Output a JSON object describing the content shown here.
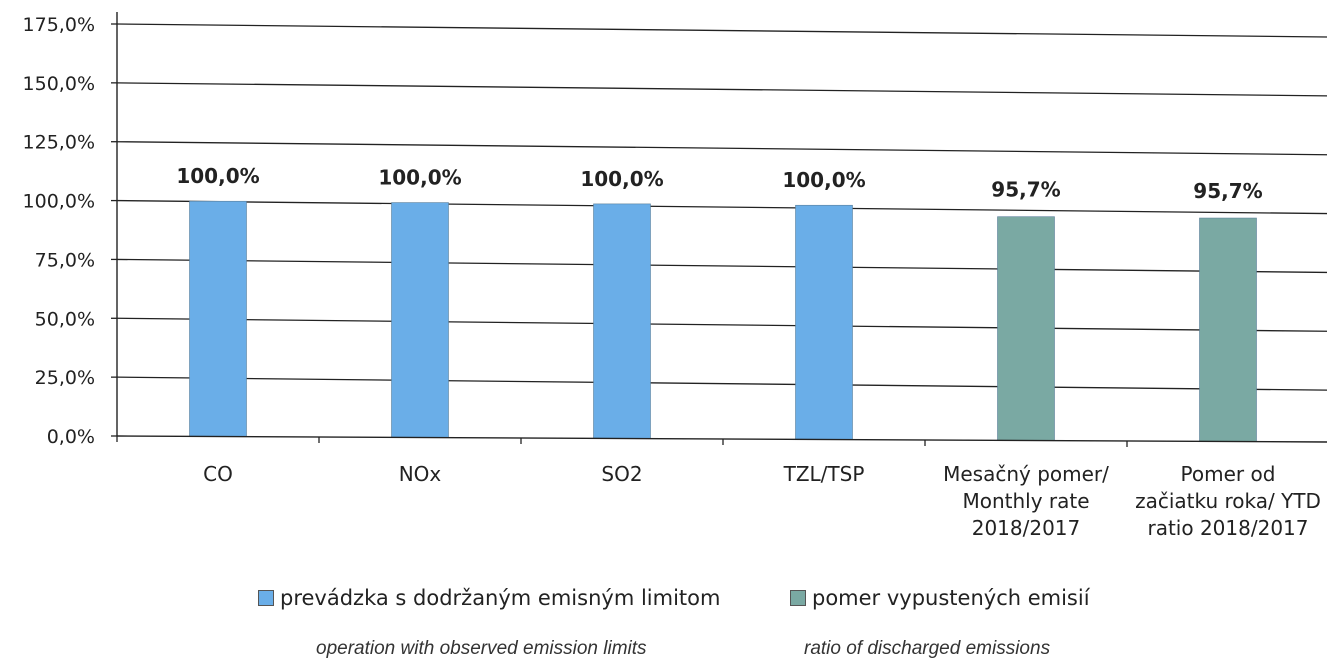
{
  "chart_data": {
    "type": "bar",
    "categories": [
      [
        "CO"
      ],
      [
        "NOx"
      ],
      [
        "SO2"
      ],
      [
        "TZL/TSP"
      ],
      [
        "Mesačný pomer/",
        "Monthly rate",
        "2018/2017"
      ],
      [
        "Pomer  od",
        "začiatku roka/ YTD",
        "ratio 2018/2017"
      ]
    ],
    "values": [
      100.0,
      100.0,
      100.0,
      100.0,
      95.7,
      95.7
    ],
    "data_labels": [
      "100,0%",
      "100,0%",
      "100,0%",
      "100,0%",
      "95,7%",
      "95,7%"
    ],
    "series_index": [
      0,
      0,
      0,
      0,
      1,
      1
    ],
    "series": [
      {
        "name": "prevádzka s dodržaným emisným limitom",
        "name_en": "operation with observed emission limits",
        "color": "#6aaee8"
      },
      {
        "name": "pomer vypustených emisií",
        "name_en": "ratio of discharged emissions",
        "color": "#7aa9a3"
      }
    ],
    "y_ticks": [
      "0,0%",
      "25,0%",
      "50,0%",
      "75,0%",
      "100,0%",
      "125,0%",
      "150,0%",
      "175,0%"
    ],
    "ylim": [
      0,
      175
    ],
    "grid": true,
    "legend": "bottom"
  }
}
